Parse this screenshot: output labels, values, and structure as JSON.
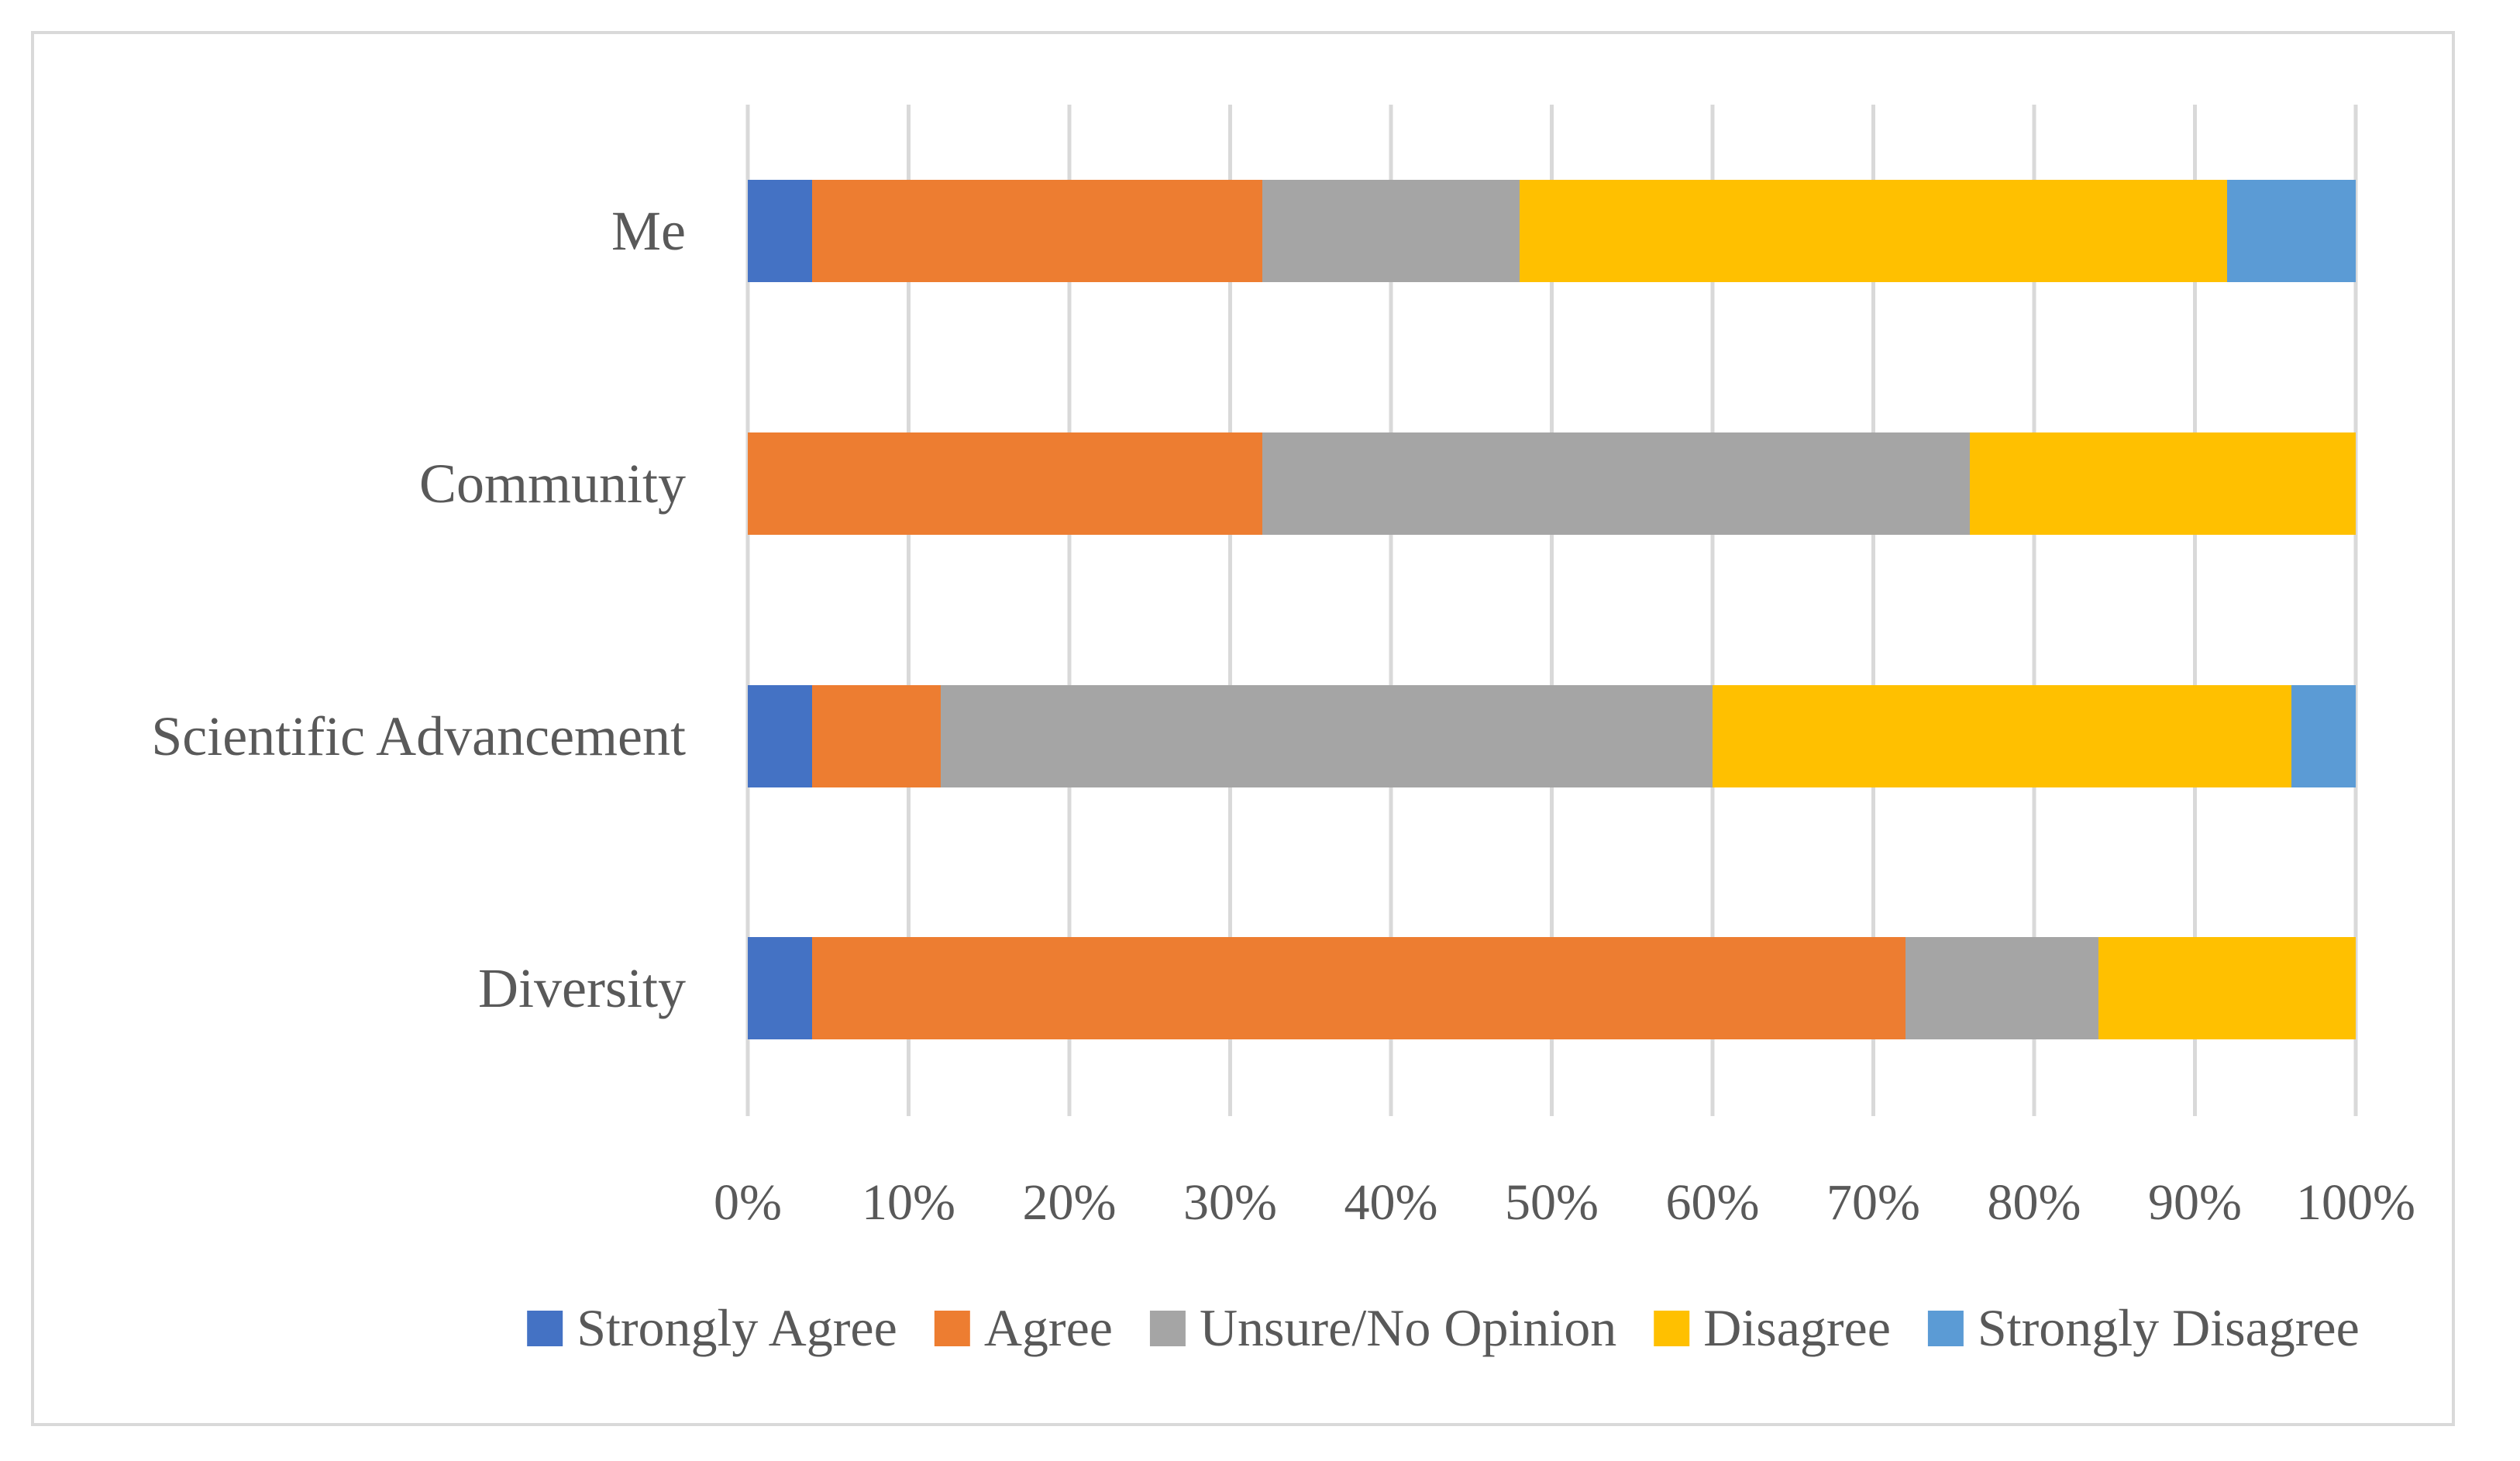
{
  "chart_data": {
    "type": "bar",
    "orientation": "horizontal",
    "stacked": "percent",
    "title": "",
    "xlabel": "",
    "ylabel": "",
    "categories": [
      "Me",
      "Community",
      "Scientific Advancement",
      "Diversity"
    ],
    "series": [
      {
        "name": "Strongly Agree",
        "color": "#4472C4",
        "values": [
          4,
          0,
          4,
          4
        ]
      },
      {
        "name": "Agree",
        "color": "#ED7D31",
        "values": [
          28,
          32,
          8,
          68
        ]
      },
      {
        "name": "Unsure/No Opinion",
        "color": "#A5A5A5",
        "values": [
          16,
          44,
          48,
          12
        ]
      },
      {
        "name": "Disagree",
        "color": "#FFC000",
        "values": [
          44,
          24,
          36,
          16
        ]
      },
      {
        "name": "Strongly Disagree",
        "color": "#5B9BD5",
        "values": [
          8,
          0,
          4,
          0
        ]
      }
    ],
    "xlim": [
      0,
      100
    ],
    "xticks": [
      0,
      10,
      20,
      30,
      40,
      50,
      60,
      70,
      80,
      90,
      100
    ],
    "xtick_labels": [
      "0%",
      "10%",
      "20%",
      "30%",
      "40%",
      "50%",
      "60%",
      "70%",
      "80%",
      "90%",
      "100%"
    ],
    "grid": true,
    "gridline_color": "#d9d9d9",
    "legend_position": "bottom"
  }
}
